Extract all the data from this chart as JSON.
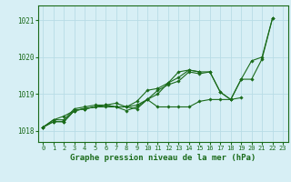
{
  "background_color": "#d7eff5",
  "grid_color": "#b8dce6",
  "line_color": "#1a6b1a",
  "title": "Graphe pression niveau de la mer (hPa)",
  "xlim": [
    -0.5,
    23.5
  ],
  "ylim": [
    1017.7,
    1021.4
  ],
  "yticks": [
    1018,
    1019,
    1020,
    1021
  ],
  "xticks": [
    0,
    1,
    2,
    3,
    4,
    5,
    6,
    7,
    8,
    9,
    10,
    11,
    12,
    13,
    14,
    15,
    16,
    17,
    18,
    19,
    20,
    21,
    22,
    23
  ],
  "series": [
    [
      0,
      1018.1
    ],
    [
      1,
      1018.25
    ],
    [
      2,
      1018.25
    ],
    [
      3,
      1018.55
    ],
    [
      4,
      1018.6
    ],
    [
      5,
      1018.65
    ],
    [
      6,
      1018.7
    ],
    [
      7,
      1018.65
    ],
    [
      8,
      1018.55
    ],
    [
      9,
      1018.65
    ],
    [
      10,
      1018.85
    ],
    [
      11,
      1018.65
    ],
    [
      12,
      1018.65
    ],
    [
      13,
      1018.65
    ],
    [
      14,
      1018.65
    ],
    [
      15,
      1018.8
    ],
    [
      16,
      1018.85
    ],
    [
      17,
      1018.85
    ],
    [
      18,
      1018.85
    ],
    [
      19,
      1018.9
    ]
  ],
  "line1": [
    1018.1,
    1018.25,
    1018.25,
    1018.55,
    1018.6,
    1018.65,
    1018.7,
    1018.65,
    1018.55,
    1018.65,
    1018.85,
    1018.65,
    1018.65,
    1018.65,
    1018.65,
    1018.8,
    1018.85,
    1018.85,
    1018.85,
    1018.9,
    null,
    null,
    null,
    null
  ],
  "line2": [
    1018.1,
    1018.3,
    1018.3,
    1018.6,
    1018.65,
    1018.7,
    1018.7,
    1018.75,
    1018.65,
    1018.8,
    1019.1,
    1019.15,
    1019.3,
    1019.45,
    1019.65,
    1019.6,
    null,
    null,
    null,
    null,
    null,
    null,
    null,
    null
  ],
  "line3": [
    1018.1,
    1018.3,
    1018.4,
    1018.55,
    1018.6,
    1018.65,
    1018.65,
    1018.65,
    1018.65,
    1018.7,
    1018.85,
    1019.1,
    1019.25,
    1019.35,
    1019.6,
    1019.55,
    1019.6,
    1019.05,
    1018.85,
    1019.4,
    1019.4,
    1019.95,
    1021.05,
    null
  ],
  "line4": [
    1018.1,
    1018.25,
    1018.25,
    1018.55,
    1018.6,
    1018.65,
    1018.7,
    1018.65,
    1018.65,
    1018.6,
    1018.85,
    1019.0,
    1019.3,
    1019.6,
    1019.65,
    1019.6,
    1019.6,
    1019.05,
    1018.85,
    1019.4,
    1019.9,
    1020.0,
    1021.05,
    null
  ]
}
